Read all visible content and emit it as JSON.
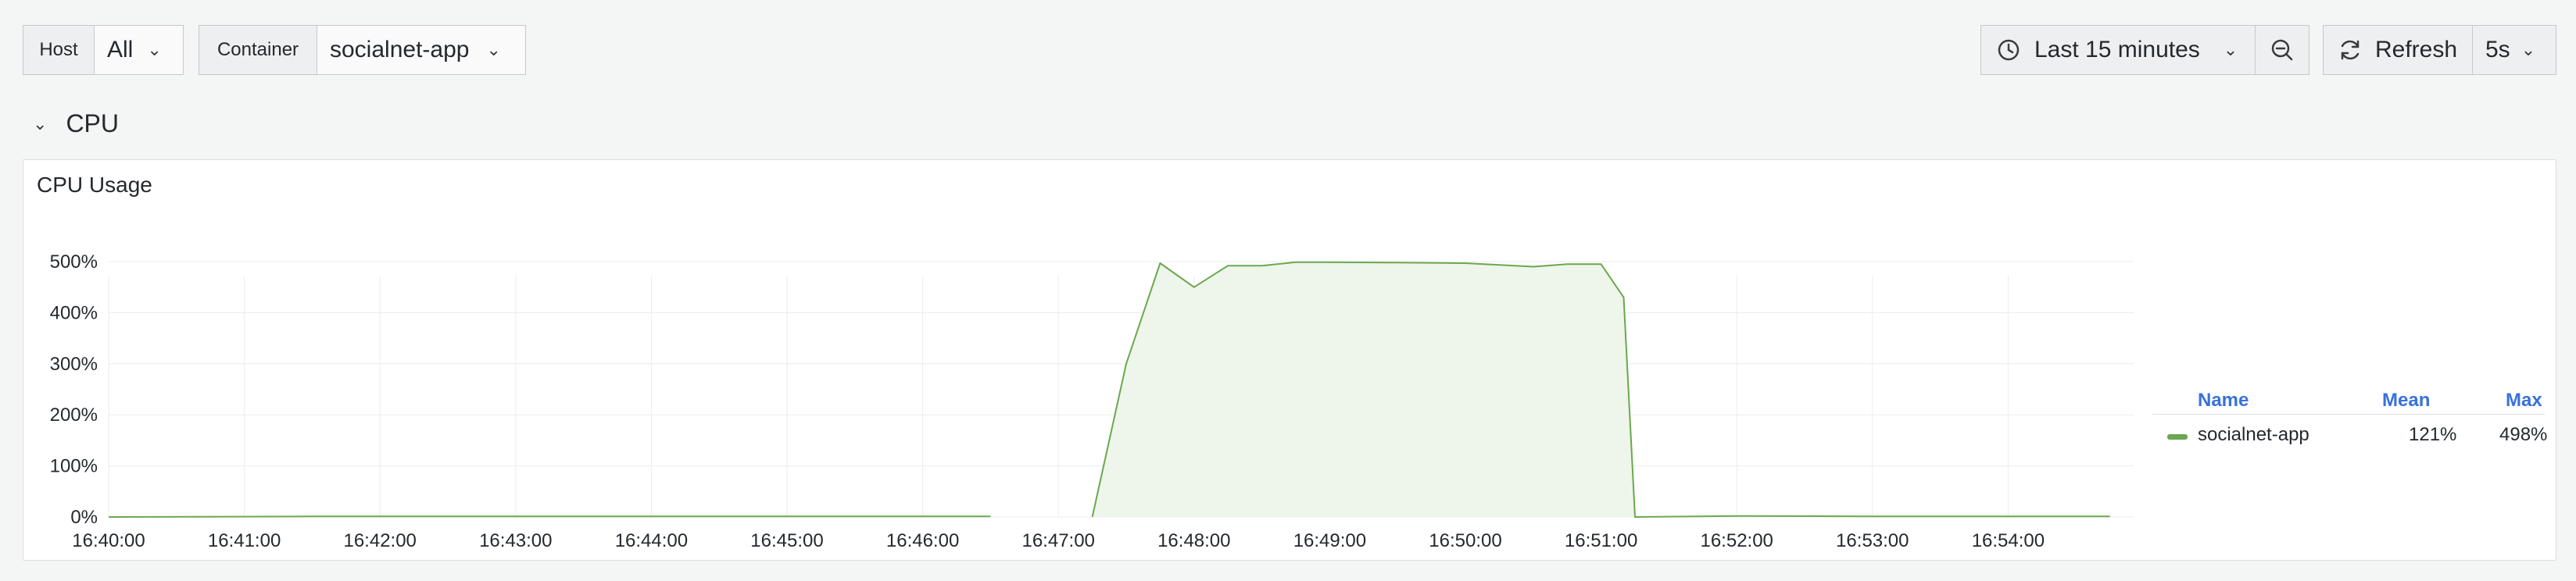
{
  "toolbar": {
    "host": {
      "label": "Host",
      "value": "All"
    },
    "container": {
      "label": "Container",
      "value": "socialnet-app"
    },
    "time_range": "Last 15 minutes",
    "refresh_label": "Refresh",
    "refresh_interval": "5s"
  },
  "row": {
    "title": "CPU"
  },
  "panel": {
    "title": "CPU Usage"
  },
  "legend": {
    "headers": {
      "name": "Name",
      "mean": "Mean",
      "max": "Max"
    },
    "items": [
      {
        "name": "socialnet-app",
        "mean": "121%",
        "max": "498%",
        "color": "#6aa84f"
      }
    ]
  },
  "colors": {
    "series": "#6aa84f",
    "fill": "#eef5ea",
    "grid": "#ececec",
    "accent": "#3871dc"
  },
  "chart_data": {
    "type": "area",
    "title": "CPU Usage",
    "xlabel": "",
    "ylabel": "",
    "x_ticks": [
      "16:40:00",
      "16:41:00",
      "16:42:00",
      "16:43:00",
      "16:44:00",
      "16:45:00",
      "16:46:00",
      "16:47:00",
      "16:48:00",
      "16:49:00",
      "16:50:00",
      "16:51:00",
      "16:52:00",
      "16:53:00",
      "16:54:00"
    ],
    "y_ticks": [
      "0%",
      "100%",
      "200%",
      "300%",
      "400%",
      "500%"
    ],
    "ylim": [
      0,
      500
    ],
    "grid": true,
    "legend_placement": "right",
    "series": [
      {
        "name": "socialnet-app",
        "segments": [
          [
            [
              "16:40:00",
              0
            ],
            [
              "16:41:30",
              1
            ],
            [
              "16:43:00",
              1
            ],
            [
              "16:44:00",
              1
            ],
            [
              "16:45:00",
              1
            ],
            [
              "16:46:00",
              1
            ],
            [
              "16:46:30",
              1
            ]
          ],
          [
            [
              "16:47:15",
              0
            ],
            [
              "16:47:30",
              300
            ],
            [
              "16:47:45",
              497
            ],
            [
              "16:48:00",
              450
            ],
            [
              "16:48:15",
              492
            ],
            [
              "16:48:30",
              492
            ],
            [
              "16:48:45",
              499
            ],
            [
              "16:49:00",
              499
            ],
            [
              "16:49:30",
              498
            ],
            [
              "16:50:00",
              497
            ],
            [
              "16:50:30",
              490
            ],
            [
              "16:50:45",
              495
            ],
            [
              "16:51:00",
              495
            ],
            [
              "16:51:00",
              495
            ],
            [
              "16:51:10",
              430
            ],
            [
              "16:51:15",
              0
            ],
            [
              "16:52:00",
              2
            ],
            [
              "16:53:00",
              1
            ],
            [
              "16:54:00",
              1
            ],
            [
              "16:54:45",
              1
            ]
          ]
        ]
      }
    ]
  }
}
